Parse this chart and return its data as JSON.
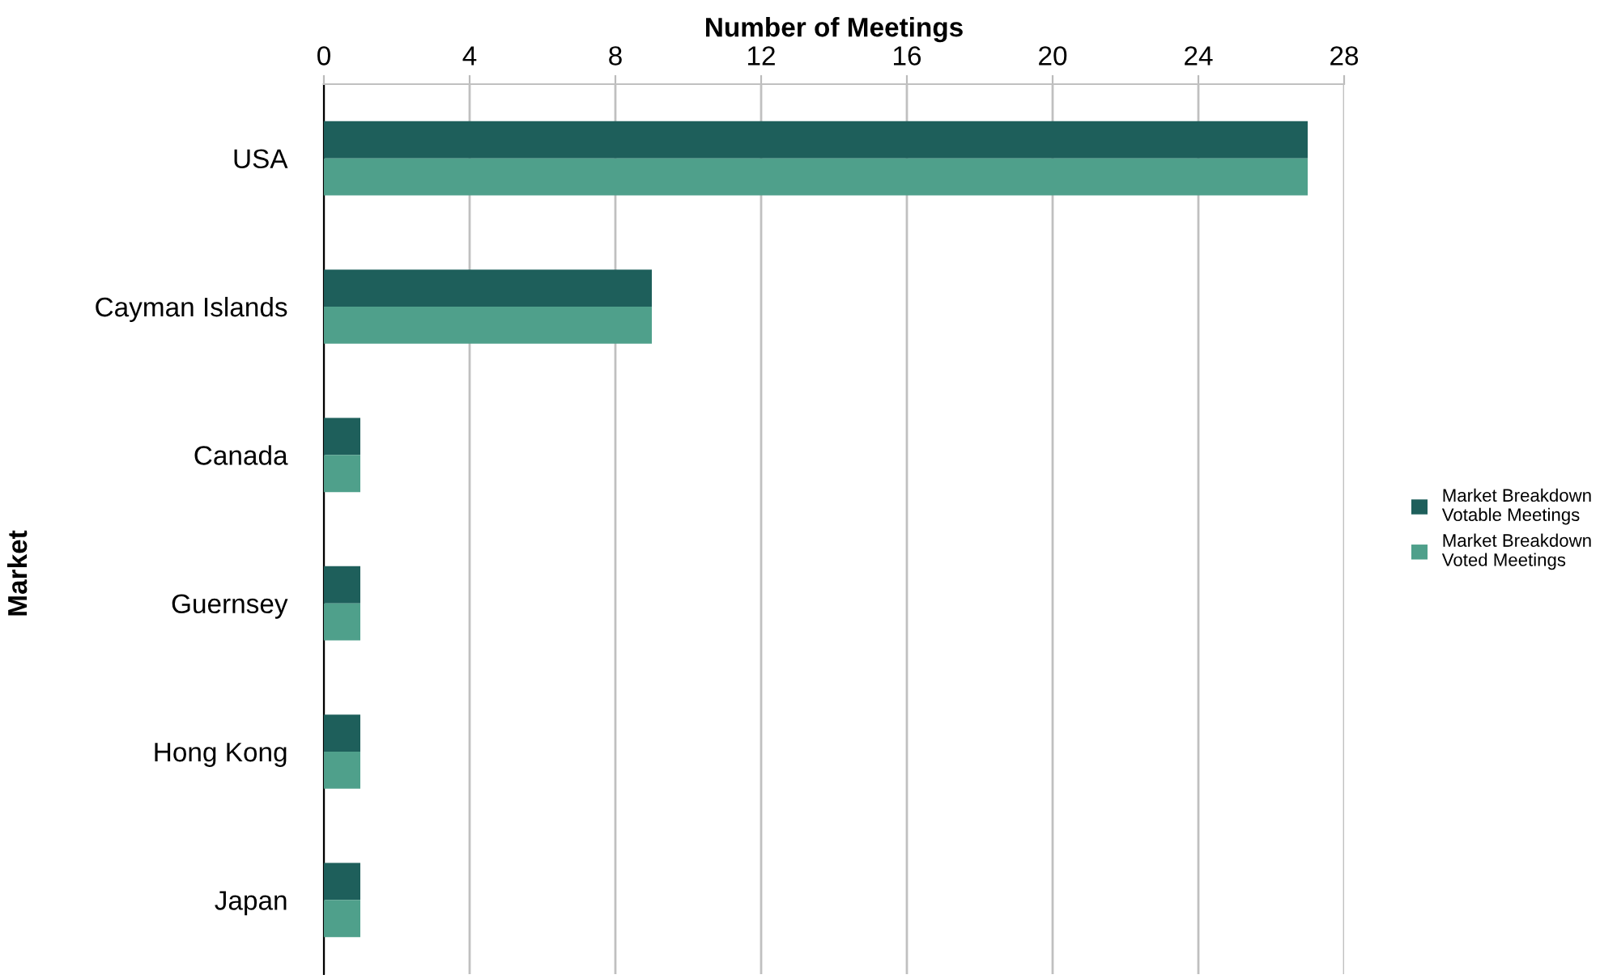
{
  "chart_data": {
    "type": "bar",
    "orientation": "horizontal",
    "xlabel": "Number of Meetings",
    "ylabel": "Market",
    "categories": [
      "USA",
      "Cayman Islands",
      "Canada",
      "Guernsey",
      "Hong Kong",
      "Japan"
    ],
    "series": [
      {
        "name": "Market Breakdown\nVotable Meetings",
        "color": "#1e5f5b",
        "values": [
          27,
          9,
          1,
          1,
          1,
          1
        ]
      },
      {
        "name": "Market Breakdown\nVoted Meetings",
        "color": "#4fa08b",
        "values": [
          27,
          9,
          1,
          1,
          1,
          1
        ]
      }
    ],
    "xlim": [
      0,
      28
    ],
    "xticks": [
      0,
      4,
      8,
      12,
      16,
      20,
      24,
      28
    ],
    "grid": "x",
    "legend": "right"
  }
}
